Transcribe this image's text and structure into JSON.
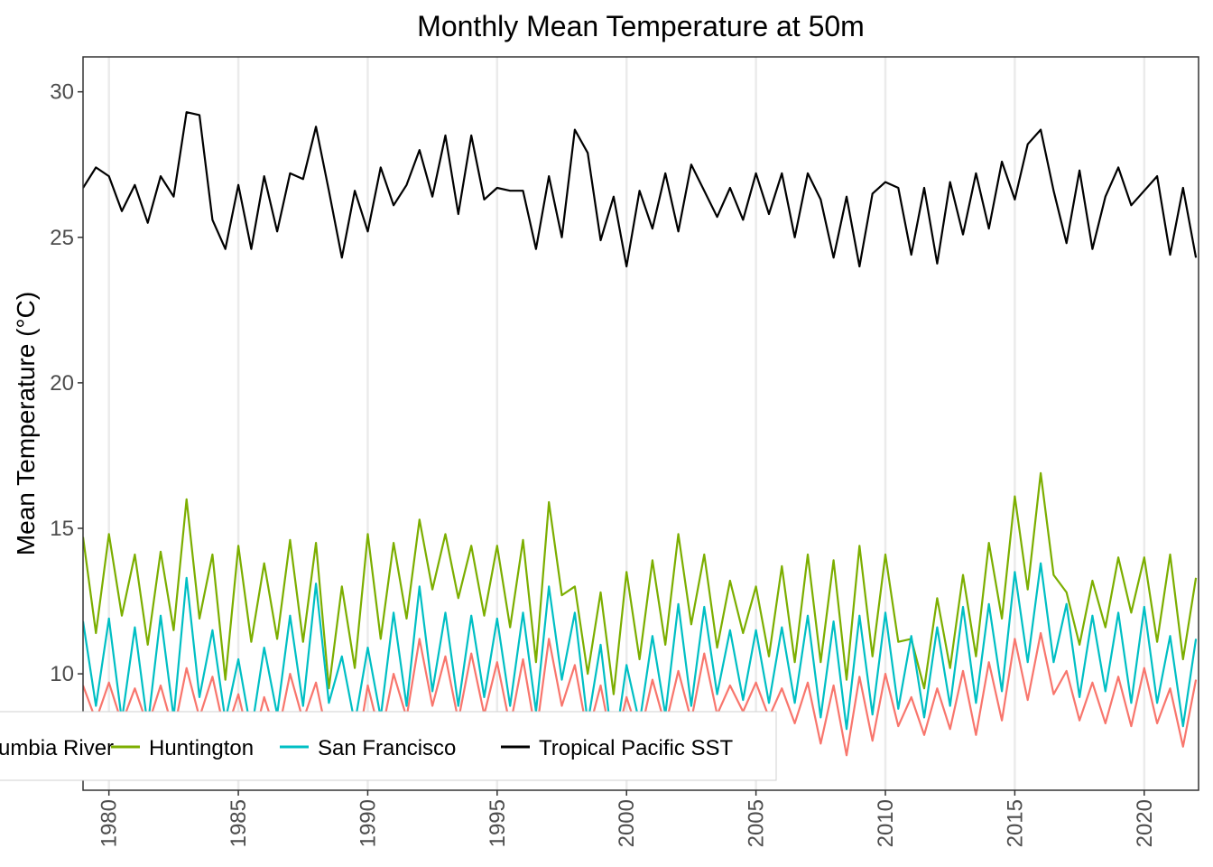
{
  "chart_data": {
    "type": "line",
    "title": "Monthly Mean Temperature at 50m",
    "xlabel": "",
    "ylabel": "Mean Temperature (°C)",
    "xlim": [
      1979.0,
      2022.1
    ],
    "ylim": [
      6.0,
      31.2
    ],
    "x_ticks": [
      "1980",
      "1985",
      "1990",
      "1995",
      "2000",
      "2005",
      "2010",
      "2015",
      "2020"
    ],
    "y_ticks": [
      "10",
      "15",
      "20",
      "25",
      "30"
    ],
    "grid": "vertical major gridlines at x ticks",
    "legend_position": "bottom-left",
    "series": [
      {
        "name": "Columbia River",
        "color": "#F8766D",
        "x": [
          1979.0,
          1979.5,
          1980.0,
          1980.5,
          1981.0,
          1981.5,
          1982.0,
          1982.5,
          1983.0,
          1983.5,
          1984.0,
          1984.5,
          1985.0,
          1985.5,
          1986.0,
          1986.5,
          1987.0,
          1987.5,
          1988.0,
          1988.5,
          1989.0,
          1989.5,
          1990.0,
          1990.5,
          1991.0,
          1991.5,
          1992.0,
          1992.5,
          1993.0,
          1993.5,
          1994.0,
          1994.5,
          1995.0,
          1995.5,
          1996.0,
          1996.5,
          1997.0,
          1997.5,
          1998.0,
          1998.5,
          1999.0,
          1999.5,
          2000.0,
          2000.5,
          2001.0,
          2001.5,
          2002.0,
          2002.5,
          2003.0,
          2003.5,
          2004.0,
          2004.5,
          2005.0,
          2005.5,
          2006.0,
          2006.5,
          2007.0,
          2007.5,
          2008.0,
          2008.5,
          2009.0,
          2009.5,
          2010.0,
          2010.5,
          2011.0,
          2011.5,
          2012.0,
          2012.5,
          2013.0,
          2013.5,
          2014.0,
          2014.5,
          2015.0,
          2015.5,
          2016.0,
          2016.5,
          2017.0,
          2017.5,
          2018.0,
          2018.5,
          2019.0,
          2019.5,
          2020.0,
          2020.5,
          2021.0,
          2021.5,
          2022.0
        ],
        "y": [
          9.6,
          8.4,
          9.7,
          8.3,
          9.5,
          8.2,
          9.6,
          8.0,
          10.2,
          8.5,
          9.9,
          7.9,
          9.3,
          7.4,
          9.2,
          7.8,
          10.0,
          8.4,
          9.7,
          7.6,
          8.1,
          6.9,
          9.6,
          7.8,
          10.0,
          8.5,
          11.2,
          8.9,
          10.6,
          8.4,
          10.7,
          8.6,
          10.4,
          8.2,
          10.5,
          7.9,
          11.2,
          8.9,
          10.3,
          7.9,
          9.6,
          7.3,
          9.2,
          7.8,
          9.8,
          8.2,
          10.1,
          8.4,
          10.7,
          8.6,
          9.6,
          8.7,
          9.7,
          8.5,
          9.5,
          8.3,
          9.7,
          7.6,
          9.6,
          7.2,
          9.9,
          7.7,
          10.0,
          8.2,
          9.2,
          7.9,
          9.5,
          8.1,
          10.1,
          7.9,
          10.4,
          8.4,
          11.2,
          9.1,
          11.4,
          9.3,
          10.1,
          8.4,
          9.7,
          8.3,
          9.9,
          8.2,
          10.2,
          8.3,
          9.5,
          7.5,
          9.8
        ]
      },
      {
        "name": "Huntington",
        "color": "#7CAE00",
        "x": [
          1979.0,
          1979.5,
          1980.0,
          1980.5,
          1981.0,
          1981.5,
          1982.0,
          1982.5,
          1983.0,
          1983.5,
          1984.0,
          1984.5,
          1985.0,
          1985.5,
          1986.0,
          1986.5,
          1987.0,
          1987.5,
          1988.0,
          1988.5,
          1989.0,
          1989.5,
          1990.0,
          1990.5,
          1991.0,
          1991.5,
          1992.0,
          1992.5,
          1993.0,
          1993.5,
          1994.0,
          1994.5,
          1995.0,
          1995.5,
          1996.0,
          1996.5,
          1997.0,
          1997.5,
          1998.0,
          1998.5,
          1999.0,
          1999.5,
          2000.0,
          2000.5,
          2001.0,
          2001.5,
          2002.0,
          2002.5,
          2003.0,
          2003.5,
          2004.0,
          2004.5,
          2005.0,
          2005.5,
          2006.0,
          2006.5,
          2007.0,
          2007.5,
          2008.0,
          2008.5,
          2009.0,
          2009.5,
          2010.0,
          2010.5,
          2011.0,
          2011.5,
          2012.0,
          2012.5,
          2013.0,
          2013.5,
          2014.0,
          2014.5,
          2015.0,
          2015.5,
          2016.0,
          2016.5,
          2017.0,
          2017.5,
          2018.0,
          2018.5,
          2019.0,
          2019.5,
          2020.0,
          2020.5,
          2021.0,
          2021.5,
          2022.0
        ],
        "y": [
          14.7,
          11.4,
          14.8,
          12.0,
          14.1,
          11.0,
          14.2,
          11.5,
          16.0,
          11.9,
          14.1,
          9.8,
          14.4,
          11.1,
          13.8,
          11.2,
          14.6,
          11.1,
          14.5,
          9.5,
          13.0,
          10.2,
          14.8,
          11.2,
          14.5,
          11.9,
          15.3,
          12.9,
          14.8,
          12.6,
          14.4,
          12.0,
          14.4,
          11.6,
          14.6,
          10.4,
          15.9,
          12.7,
          13.0,
          10.0,
          12.8,
          9.3,
          13.5,
          10.5,
          13.9,
          11.0,
          14.8,
          11.7,
          14.1,
          10.9,
          13.2,
          11.4,
          13.0,
          10.6,
          13.7,
          10.4,
          14.1,
          10.4,
          13.9,
          9.8,
          14.4,
          10.6,
          14.1,
          11.1,
          11.2,
          9.5,
          12.6,
          10.2,
          13.4,
          10.6,
          14.5,
          11.9,
          16.1,
          12.9,
          16.9,
          13.4,
          12.8,
          11.0,
          13.2,
          11.6,
          14.0,
          12.1,
          14.0,
          11.1,
          14.1,
          10.5,
          13.3
        ]
      },
      {
        "name": "San Francisco",
        "color": "#00BFC4",
        "x": [
          1979.0,
          1979.5,
          1980.0,
          1980.5,
          1981.0,
          1981.5,
          1982.0,
          1982.5,
          1983.0,
          1983.5,
          1984.0,
          1984.5,
          1985.0,
          1985.5,
          1986.0,
          1986.5,
          1987.0,
          1987.5,
          1988.0,
          1988.5,
          1989.0,
          1989.5,
          1990.0,
          1990.5,
          1991.0,
          1991.5,
          1992.0,
          1992.5,
          1993.0,
          1993.5,
          1994.0,
          1994.5,
          1995.0,
          1995.5,
          1996.0,
          1996.5,
          1997.0,
          1997.5,
          1998.0,
          1998.5,
          1999.0,
          1999.5,
          2000.0,
          2000.5,
          2001.0,
          2001.5,
          2002.0,
          2002.5,
          2003.0,
          2003.5,
          2004.0,
          2004.5,
          2005.0,
          2005.5,
          2006.0,
          2006.5,
          2007.0,
          2007.5,
          2008.0,
          2008.5,
          2009.0,
          2009.5,
          2010.0,
          2010.5,
          2011.0,
          2011.5,
          2012.0,
          2012.5,
          2013.0,
          2013.5,
          2014.0,
          2014.5,
          2015.0,
          2015.5,
          2016.0,
          2016.5,
          2017.0,
          2017.5,
          2018.0,
          2018.5,
          2019.0,
          2019.5,
          2020.0,
          2020.5,
          2021.0,
          2021.5,
          2022.0
        ],
        "y": [
          11.8,
          8.9,
          11.9,
          8.4,
          11.6,
          8.2,
          12.0,
          8.5,
          13.3,
          9.2,
          11.5,
          8.4,
          10.5,
          8.0,
          10.9,
          8.6,
          12.0,
          8.9,
          13.1,
          9.0,
          10.6,
          8.3,
          10.9,
          8.5,
          12.1,
          8.9,
          13.0,
          9.4,
          12.1,
          8.9,
          12.0,
          9.2,
          11.9,
          8.9,
          12.1,
          8.7,
          13.0,
          9.8,
          12.1,
          8.3,
          11.0,
          7.2,
          10.3,
          8.3,
          11.3,
          8.6,
          12.4,
          8.9,
          12.3,
          9.3,
          11.5,
          9.1,
          11.5,
          9.0,
          11.6,
          9.0,
          12.0,
          8.5,
          11.8,
          8.1,
          12.0,
          8.6,
          12.1,
          8.8,
          11.3,
          8.5,
          11.6,
          8.9,
          12.3,
          9.0,
          12.4,
          9.4,
          13.5,
          10.4,
          13.8,
          10.4,
          12.4,
          9.2,
          12.0,
          9.4,
          12.1,
          9.0,
          12.3,
          9.0,
          11.3,
          8.2,
          11.2
        ]
      },
      {
        "name": "Tropical Pacific SST",
        "color": "#000000",
        "x": [
          1979.0,
          1979.5,
          1980.0,
          1980.5,
          1981.0,
          1981.5,
          1982.0,
          1982.5,
          1983.0,
          1983.5,
          1984.0,
          1984.5,
          1985.0,
          1985.5,
          1986.0,
          1986.5,
          1987.0,
          1987.5,
          1988.0,
          1988.5,
          1989.0,
          1989.5,
          1990.0,
          1990.5,
          1991.0,
          1991.5,
          1992.0,
          1992.5,
          1993.0,
          1993.5,
          1994.0,
          1994.5,
          1995.0,
          1995.5,
          1996.0,
          1996.5,
          1997.0,
          1997.5,
          1998.0,
          1998.5,
          1999.0,
          1999.5,
          2000.0,
          2000.5,
          2001.0,
          2001.5,
          2002.0,
          2002.5,
          2003.0,
          2003.5,
          2004.0,
          2004.5,
          2005.0,
          2005.5,
          2006.0,
          2006.5,
          2007.0,
          2007.5,
          2008.0,
          2008.5,
          2009.0,
          2009.5,
          2010.0,
          2010.5,
          2011.0,
          2011.5,
          2012.0,
          2012.5,
          2013.0,
          2013.5,
          2014.0,
          2014.5,
          2015.0,
          2015.5,
          2016.0,
          2016.5,
          2017.0,
          2017.5,
          2018.0,
          2018.5,
          2019.0,
          2019.5,
          2020.0,
          2020.5,
          2021.0,
          2021.5,
          2022.0
        ],
        "y": [
          26.7,
          27.4,
          27.1,
          25.9,
          26.8,
          25.5,
          27.1,
          26.4,
          29.3,
          29.2,
          25.6,
          24.6,
          26.8,
          24.6,
          27.1,
          25.2,
          27.2,
          27.0,
          28.8,
          26.6,
          24.3,
          26.6,
          25.2,
          27.4,
          26.1,
          26.8,
          28.0,
          26.4,
          28.5,
          25.8,
          28.5,
          26.3,
          26.7,
          26.6,
          26.6,
          24.6,
          27.1,
          25.0,
          28.7,
          27.9,
          24.9,
          26.4,
          24.0,
          26.6,
          25.3,
          27.2,
          25.2,
          27.5,
          26.6,
          25.7,
          26.7,
          25.6,
          27.2,
          25.8,
          27.2,
          25.0,
          27.2,
          26.3,
          24.3,
          26.4,
          24.0,
          26.5,
          26.9,
          26.7,
          24.4,
          26.7,
          24.1,
          26.9,
          25.1,
          27.2,
          25.3,
          27.6,
          26.3,
          28.2,
          28.7,
          26.6,
          24.8,
          27.3,
          24.6,
          26.4,
          27.4,
          26.1,
          26.6,
          27.1,
          24.4,
          26.7,
          24.3
        ]
      }
    ]
  }
}
